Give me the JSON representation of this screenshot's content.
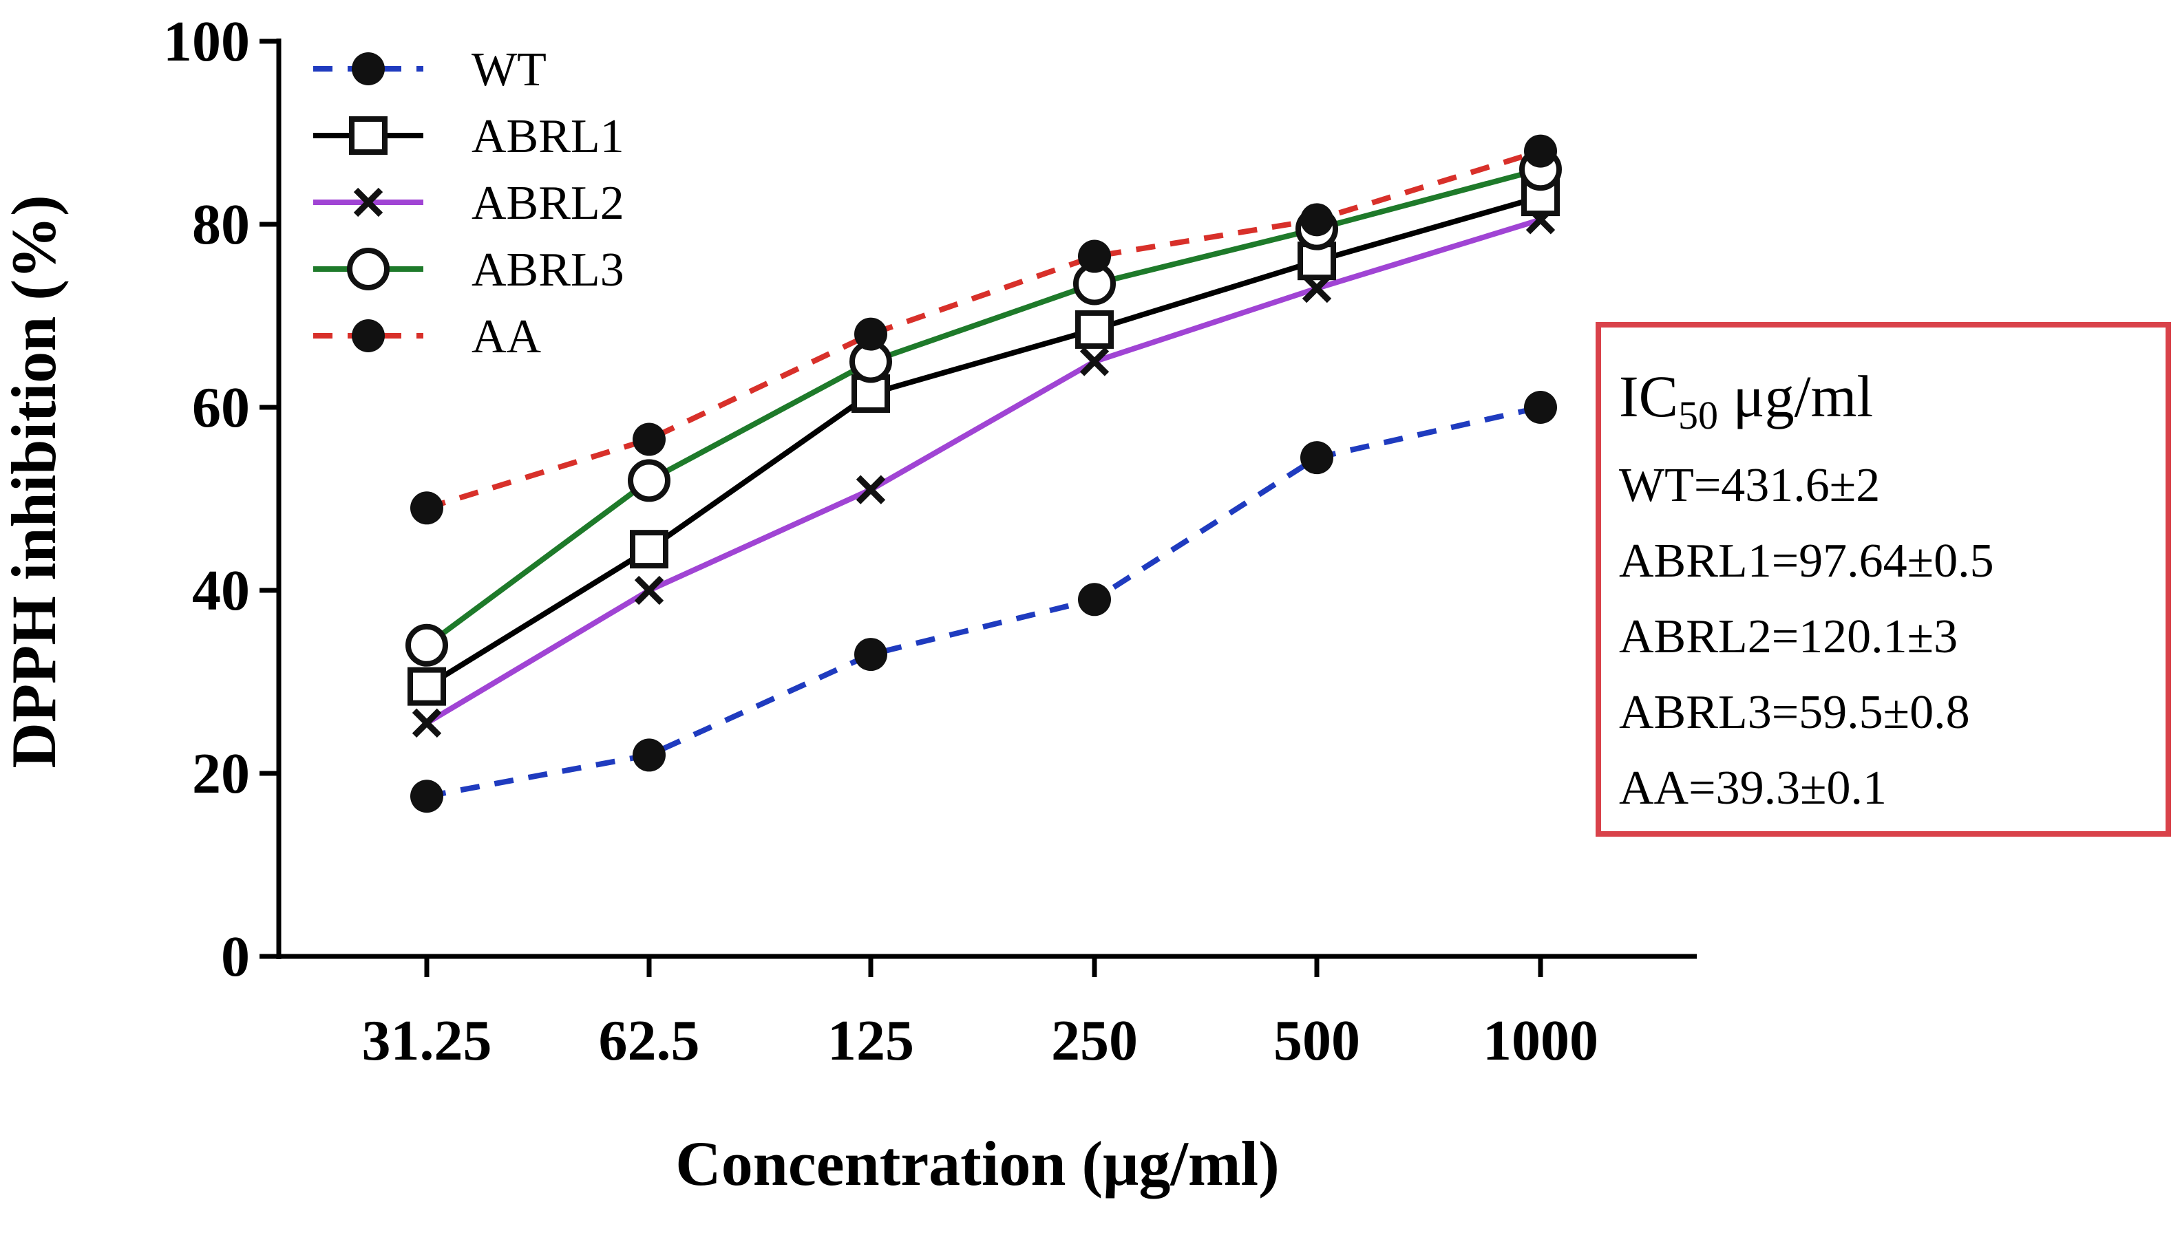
{
  "chart_data": {
    "type": "line",
    "xlabel": "Concentration (μg/ml)",
    "ylabel": "DPPH inhibition (%)",
    "categories": [
      "31.25",
      "62.5",
      "125",
      "250",
      "500",
      "1000"
    ],
    "ylim": [
      0,
      100
    ],
    "yticks": [
      0,
      20,
      40,
      60,
      80,
      100
    ],
    "series": [
      {
        "name": "WT",
        "color": "#1f3bbf",
        "dash": true,
        "marker": "filled-circle",
        "values": [
          17.5,
          22,
          33,
          39,
          54.5,
          60
        ]
      },
      {
        "name": "ABRL1",
        "color": "#000000",
        "dash": false,
        "marker": "open-square",
        "values": [
          29.5,
          44.5,
          61.5,
          68.5,
          76,
          83
        ]
      },
      {
        "name": "ABRL2",
        "color": "#a044d4",
        "dash": false,
        "marker": "x",
        "values": [
          25.5,
          40,
          51,
          65,
          73,
          80.5
        ]
      },
      {
        "name": "ABRL3",
        "color": "#1e7a2a",
        "dash": false,
        "marker": "open-circle",
        "values": [
          34,
          52,
          65,
          73.5,
          79.5,
          86
        ]
      },
      {
        "name": "AA",
        "color": "#d8302a",
        "dash": true,
        "marker": "filled-circle",
        "values": [
          49,
          56.5,
          68,
          76.5,
          80.5,
          88
        ]
      }
    ],
    "annotation_box": {
      "title_main": "IC",
      "title_sub": "50",
      "title_unit": " μg/ml",
      "lines": [
        "WT=431.6±2",
        "ABRL1=97.64±0.5",
        "ABRL2=120.1±3",
        "ABRL3=59.5±0.8",
        "AA=39.3±0.1"
      ],
      "border_color": "#d9424a"
    },
    "legend_position": "top-left"
  }
}
